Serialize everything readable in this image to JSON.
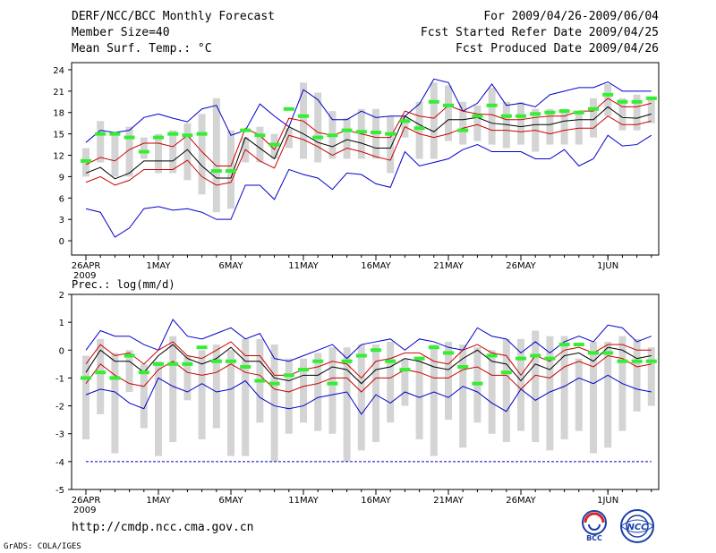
{
  "header": {
    "title": "DERF/NCC/BCC Monthly Forecast",
    "member_size": "Member Size=40",
    "variable": "Mean Surf. Temp.: °C",
    "period": "For 2009/04/26-2009/06/04",
    "started_refer": "Fcst Started Refer Date 2009/04/25",
    "produced": "Fcst Produced Date 2009/04/26"
  },
  "footer": {
    "url": "http://cmdp.ncc.cma.gov.cn",
    "credit": "GrADS: COLA/IGES",
    "logo1": "BCC",
    "logo2": "NCC"
  },
  "colors": {
    "max_min": "#0000cc",
    "spread": "#cc0000",
    "mean": "#000000",
    "box": "#d4d4d4",
    "observed": "#33ee33"
  },
  "chart_data": [
    {
      "type": "line",
      "title": "Mean Surf. Temp.: °C",
      "ylim": [
        -2,
        25
      ],
      "yticks": [
        0,
        3,
        6,
        9,
        12,
        15,
        18,
        21,
        24
      ],
      "xtick_labels": [
        "26APR",
        "1MAY",
        "6MAY",
        "11MAY",
        "16MAY",
        "21MAY",
        "26MAY",
        "1JUN"
      ],
      "xtick_days": [
        0,
        5,
        10,
        15,
        20,
        25,
        30,
        36
      ],
      "year_label": "2009",
      "days": 40,
      "max": [
        13.8,
        15.5,
        15.2,
        15.5,
        17.3,
        17.8,
        17.2,
        16.7,
        18.5,
        19.0,
        14.8,
        15.5,
        19.2,
        17.5,
        16.0,
        21.2,
        19.8,
        17.0,
        17.0,
        18.2,
        17.3,
        17.5,
        17.5,
        19.2,
        22.7,
        22.2,
        18.2,
        19.3,
        22.0,
        19.0,
        19.3,
        18.8,
        20.5,
        21.0,
        21.5,
        21.5,
        22.3,
        21.0,
        21.0,
        21.0
      ],
      "min": [
        4.5,
        4.0,
        0.5,
        1.8,
        4.5,
        4.8,
        4.3,
        4.5,
        4.0,
        3.0,
        3.0,
        7.8,
        7.8,
        5.8,
        10.0,
        9.3,
        8.8,
        7.2,
        9.5,
        9.3,
        8.0,
        7.5,
        12.5,
        10.5,
        11.0,
        11.5,
        12.8,
        13.5,
        12.5,
        12.5,
        12.5,
        11.5,
        11.5,
        12.8,
        10.5,
        11.5,
        14.8,
        13.3,
        13.5,
        14.8
      ],
      "mean": [
        9.5,
        10.3,
        8.7,
        9.5,
        11.2,
        11.2,
        11.2,
        12.8,
        10.5,
        8.8,
        8.8,
        14.5,
        13.0,
        11.5,
        16.0,
        15.0,
        13.8,
        13.2,
        14.2,
        13.7,
        13.0,
        13.0,
        17.5,
        16.3,
        15.3,
        17.0,
        17.0,
        17.3,
        16.5,
        16.3,
        16.0,
        16.3,
        16.3,
        16.8,
        17.0,
        17.0,
        18.8,
        17.3,
        17.2,
        17.8
      ],
      "upper": [
        10.7,
        11.7,
        11.2,
        12.8,
        13.7,
        13.7,
        13.2,
        14.8,
        12.5,
        10.5,
        10.5,
        15.8,
        14.8,
        12.8,
        17.2,
        16.8,
        15.2,
        14.8,
        15.5,
        15.0,
        14.5,
        14.5,
        18.2,
        17.5,
        17.2,
        19.0,
        18.2,
        17.8,
        17.7,
        17.0,
        17.0,
        17.3,
        17.5,
        17.5,
        18.2,
        18.2,
        20.0,
        18.8,
        18.8,
        19.3
      ],
      "lower": [
        8.2,
        9.0,
        7.8,
        8.5,
        10.0,
        10.0,
        10.0,
        11.3,
        9.0,
        7.8,
        8.2,
        12.8,
        11.2,
        10.2,
        14.8,
        14.2,
        13.2,
        12.0,
        13.0,
        12.5,
        11.8,
        11.3,
        16.0,
        15.0,
        14.5,
        15.0,
        15.8,
        16.3,
        15.5,
        15.5,
        15.3,
        15.5,
        15.0,
        15.5,
        15.8,
        15.8,
        17.5,
        16.3,
        16.3,
        16.8
      ],
      "box_hi": [
        13.0,
        16.8,
        15.0,
        16.0,
        14.5,
        15.0,
        15.5,
        16.5,
        17.8,
        20.0,
        15.5,
        14.5,
        16.0,
        15.0,
        15.8,
        22.2,
        20.8,
        18.2,
        17.2,
        18.5,
        18.5,
        17.5,
        17.5,
        19.5,
        22.2,
        21.8,
        19.5,
        19.0,
        21.5,
        19.5,
        19.5,
        18.5,
        18.5,
        18.5,
        18.0,
        20.0,
        22.0,
        20.0,
        20.5,
        20.0
      ],
      "box_lo": [
        9.0,
        11.0,
        9.0,
        9.0,
        11.5,
        9.5,
        9.5,
        8.5,
        6.5,
        4.0,
        4.5,
        11.0,
        11.0,
        11.5,
        13.0,
        11.5,
        11.0,
        11.5,
        11.5,
        11.5,
        11.5,
        9.5,
        14.5,
        11.5,
        11.5,
        14.0,
        13.5,
        14.0,
        13.5,
        13.0,
        13.5,
        12.5,
        13.5,
        13.5,
        13.5,
        14.5,
        17.5,
        15.5,
        15.5,
        16.5
      ],
      "observed": [
        11.2,
        15.0,
        15.0,
        14.5,
        12.5,
        14.5,
        15.0,
        14.8,
        15.0,
        9.8,
        9.8,
        15.5,
        14.8,
        13.5,
        18.5,
        17.5,
        14.5,
        14.8,
        15.5,
        15.3,
        15.2,
        15.0,
        16.8,
        15.8,
        19.5,
        19.0,
        15.5,
        17.5,
        19.0,
        17.5,
        17.5,
        17.8,
        18.0,
        18.2,
        18.0,
        18.5,
        20.5,
        19.5,
        19.5,
        20.0
      ]
    },
    {
      "type": "line",
      "title": "Prec.: log(mm/d)",
      "ylim": [
        -5,
        2
      ],
      "yticks": [
        -5,
        -4,
        -3,
        -2,
        -1,
        0,
        1,
        2
      ],
      "xtick_labels": [
        "26APR",
        "1MAY",
        "6MAY",
        "11MAY",
        "16MAY",
        "21MAY",
        "26MAY",
        "1JUN"
      ],
      "xtick_days": [
        0,
        5,
        10,
        15,
        20,
        25,
        30,
        36
      ],
      "year_label": "2009",
      "days": 40,
      "max": [
        0.0,
        0.7,
        0.5,
        0.5,
        0.2,
        0.0,
        1.1,
        0.5,
        0.4,
        0.6,
        0.8,
        0.4,
        0.6,
        -0.3,
        -0.4,
        -0.2,
        0.0,
        0.2,
        -0.3,
        0.2,
        0.3,
        0.4,
        0.0,
        0.4,
        0.3,
        0.1,
        0.0,
        0.8,
        0.5,
        0.4,
        -0.1,
        0.3,
        -0.1,
        0.3,
        0.5,
        0.3,
        0.9,
        0.8,
        0.3,
        0.5
      ],
      "min": [
        -1.6,
        -1.4,
        -1.5,
        -1.9,
        -2.1,
        -1.0,
        -1.3,
        -1.5,
        -1.2,
        -1.5,
        -1.4,
        -1.1,
        -1.7,
        -2.0,
        -2.1,
        -2.0,
        -1.7,
        -1.6,
        -1.5,
        -2.3,
        -1.6,
        -1.9,
        -1.5,
        -1.7,
        -1.5,
        -1.7,
        -1.3,
        -1.5,
        -1.9,
        -2.2,
        -1.4,
        -1.8,
        -1.5,
        -1.3,
        -1.0,
        -1.2,
        -0.9,
        -1.2,
        -1.4,
        -1.5
      ],
      "mean": [
        -0.8,
        0.0,
        -0.4,
        -0.4,
        -0.8,
        -0.2,
        0.2,
        -0.3,
        -0.5,
        -0.3,
        0.1,
        -0.4,
        -0.4,
        -1.0,
        -1.1,
        -0.9,
        -0.9,
        -0.6,
        -0.7,
        -1.2,
        -0.7,
        -0.6,
        -0.3,
        -0.4,
        -0.6,
        -0.7,
        -0.3,
        0.0,
        -0.4,
        -0.5,
        -1.1,
        -0.5,
        -0.7,
        -0.2,
        -0.1,
        -0.4,
        0.1,
        0.0,
        -0.3,
        -0.2
      ],
      "upper": [
        -0.5,
        0.2,
        -0.2,
        -0.1,
        -0.5,
        0.0,
        0.3,
        -0.2,
        -0.3,
        0.0,
        0.3,
        -0.2,
        -0.2,
        -0.9,
        -0.9,
        -0.7,
        -0.6,
        -0.4,
        -0.5,
        -1.0,
        -0.4,
        -0.3,
        -0.1,
        -0.1,
        -0.4,
        -0.5,
        0.0,
        0.2,
        -0.1,
        -0.2,
        -0.9,
        -0.2,
        -0.4,
        0.0,
        0.1,
        -0.1,
        0.2,
        0.2,
        0.0,
        0.0
      ],
      "lower": [
        -1.2,
        -0.5,
        -0.9,
        -1.2,
        -1.3,
        -0.7,
        -0.4,
        -0.8,
        -0.9,
        -0.8,
        -0.5,
        -0.8,
        -0.9,
        -1.4,
        -1.5,
        -1.3,
        -1.2,
        -1.0,
        -1.0,
        -1.5,
        -1.0,
        -1.0,
        -0.7,
        -0.8,
        -1.0,
        -1.0,
        -0.7,
        -0.6,
        -0.9,
        -0.9,
        -1.4,
        -0.9,
        -1.0,
        -0.6,
        -0.4,
        -0.6,
        -0.2,
        -0.3,
        -0.6,
        -0.5
      ],
      "box_hi": [
        -0.2,
        0.4,
        -0.1,
        0.0,
        -0.5,
        -0.4,
        0.5,
        -0.2,
        0.0,
        0.2,
        0.0,
        0.4,
        0.4,
        0.2,
        -0.3,
        -0.3,
        -0.1,
        0.1,
        0.1,
        0.2,
        0.2,
        0.3,
        -0.3,
        -0.3,
        0.2,
        0.3,
        0.2,
        0.1,
        0.0,
        0.4,
        0.4,
        0.7,
        0.5,
        0.5,
        -0.3,
        0.3,
        0.3,
        0.5,
        0.4,
        0.1
      ],
      "box_lo": [
        -3.2,
        -2.3,
        -3.7,
        -1.5,
        -2.8,
        -3.8,
        -3.3,
        -1.8,
        -3.2,
        -2.8,
        -3.8,
        -3.8,
        -2.6,
        -4.0,
        -3.0,
        -2.6,
        -2.9,
        -3.0,
        -4.0,
        -3.6,
        -3.3,
        -2.6,
        -2.0,
        -3.2,
        -3.8,
        -2.5,
        -3.5,
        -2.6,
        -3.0,
        -3.3,
        -2.9,
        -3.3,
        -3.6,
        -3.2,
        -2.9,
        -3.7,
        -3.5,
        -2.9,
        -2.2,
        -2.0
      ],
      "observed": [
        -1.0,
        -0.8,
        -1.0,
        -0.2,
        -0.8,
        -0.5,
        -0.5,
        -0.5,
        0.1,
        -0.4,
        -0.4,
        -0.6,
        -1.1,
        -1.2,
        -0.9,
        -0.7,
        -0.4,
        -1.2,
        -0.4,
        -0.2,
        0.0,
        -0.4,
        -0.7,
        -0.3,
        0.1,
        -0.1,
        -0.6,
        -1.2,
        -0.2,
        -0.8,
        -0.3,
        -0.2,
        -0.3,
        0.2,
        0.2,
        -0.1,
        -0.1,
        -0.4,
        -0.4,
        -0.4
      ],
      "floor_line": -4
    }
  ]
}
